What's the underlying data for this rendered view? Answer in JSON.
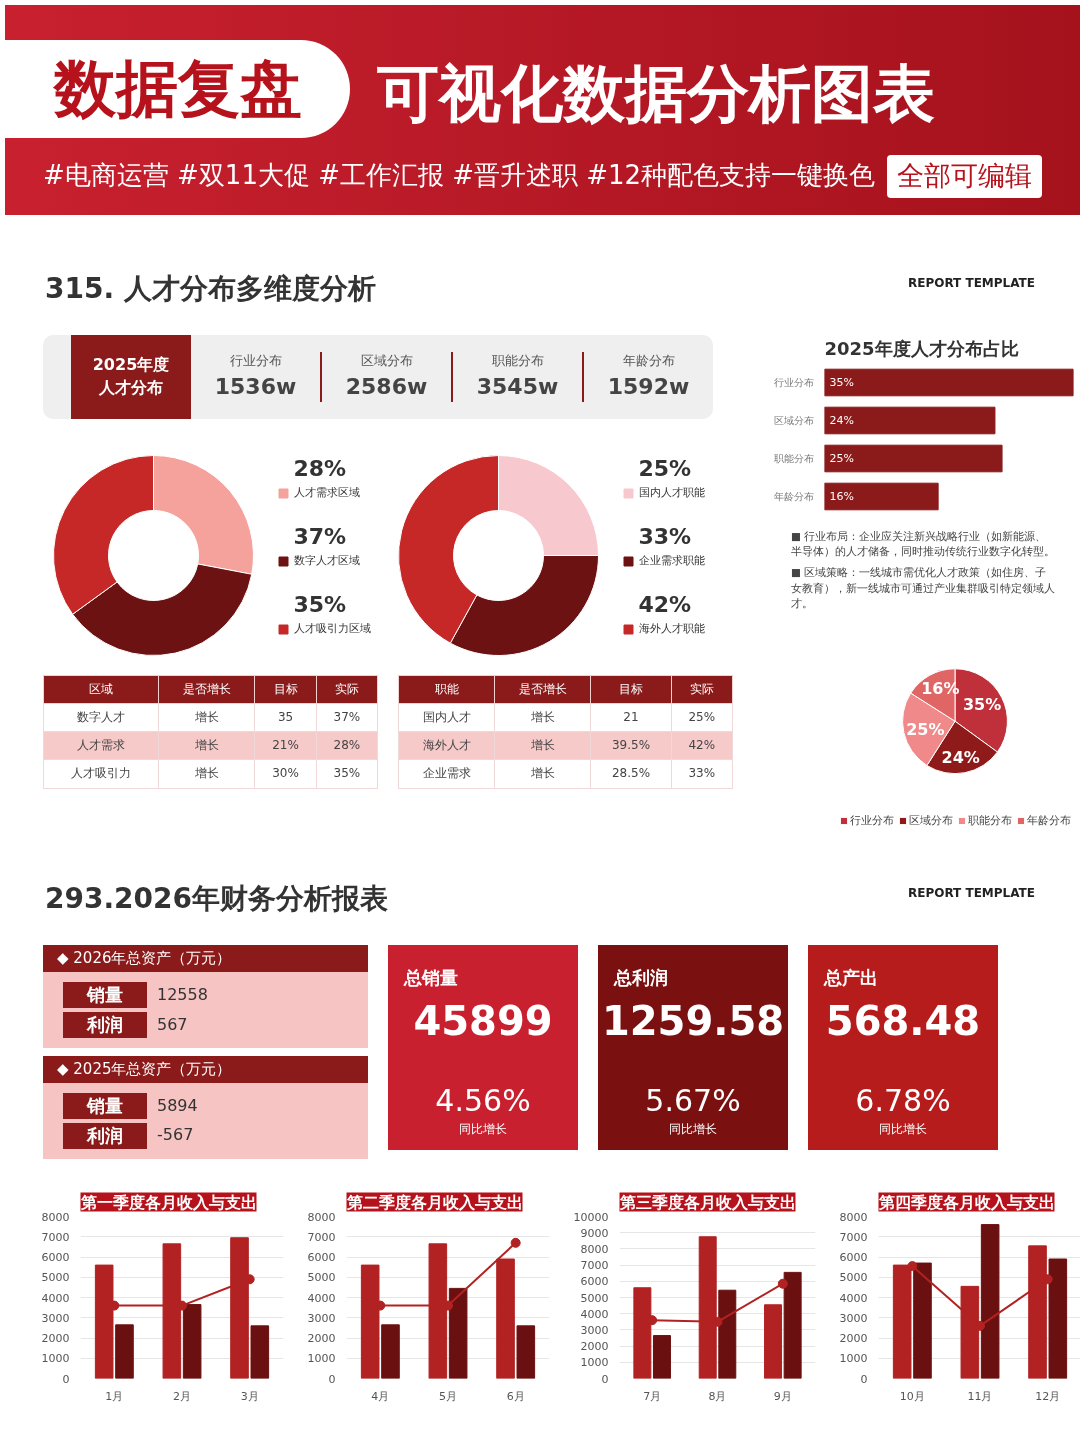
{
  "chart_data": [
    {
      "type": "other",
      "title": "数据复盘",
      "subtitle": "可视化数据分析图表",
      "annotations": [
        "#电商运营 #双11大促 #工作汇报 #晋升述职 #12种配色支持一键换色",
        "全部可编辑"
      ]
    },
    {
      "type": "other",
      "title": "315. 人才分布多维度分析",
      "annotations": [
        "REPORT TEMPLATE"
      ]
    },
    {
      "type": "other",
      "title": "2025年度人才分布",
      "categories": [
        "行业分布",
        "区域分布",
        "职能分布",
        "年龄分布"
      ],
      "value_labels": [
        "1536w",
        "2586w",
        "3545w",
        "1592w"
      ]
    },
    {
      "type": "donut",
      "categories": [
        "人才需求区域",
        "数字人才区域",
        "人才吸引力区域"
      ],
      "values": [
        28,
        37,
        35
      ],
      "colors": [
        "#f4a29b",
        "#6d1212",
        "#c62828"
      ],
      "value_labels": [
        "28%",
        "37%",
        "35%"
      ],
      "legend": "right"
    },
    {
      "type": "donut",
      "categories": [
        "国内人才职能",
        "企业需求职能",
        "海外人才职能"
      ],
      "values": [
        25,
        33,
        42
      ],
      "colors": [
        "#f8c8cf",
        "#6d1212",
        "#c62828"
      ],
      "value_labels": [
        "25%",
        "33%",
        "42%"
      ],
      "legend": "right"
    },
    {
      "type": "other",
      "categories": [
        "区域",
        "是否增长",
        "目标",
        "实际"
      ],
      "annotations": [
        "数字人才",
        "增长",
        "35",
        "37%",
        "人才需求",
        "增长",
        "21%",
        "28%",
        "人才吸引力",
        "增长",
        "30%",
        "35%"
      ]
    },
    {
      "type": "other",
      "categories": [
        "职能",
        "是否增长",
        "目标",
        "实际"
      ],
      "annotations": [
        "国内人才",
        "增长",
        "21",
        "25%",
        "海外人才",
        "增长",
        "39.5%",
        "42%",
        "企业需求",
        "增长",
        "28.5%",
        "33%"
      ]
    },
    {
      "type": "bar",
      "orientation": "horizontal",
      "title": "2025年度人才分布占比",
      "categories": [
        "行业分布",
        "区域分布",
        "职能分布",
        "年龄分布"
      ],
      "values": [
        35,
        24,
        25,
        16
      ],
      "color": "#8b1a1a",
      "value_labels": [
        "35%",
        "24%",
        "25%",
        "16%"
      ],
      "annotations": [
        "■ 行业布局：企业应关注新兴战略行业（如新能源、半导体）的人才储备，同时推动传统行业数字化转型。",
        "■ 区域策略：一线城市需优化人才政策（如住房、子女教育），新一线城市可通过产业集群吸引特定领域人才。"
      ]
    },
    {
      "type": "pie",
      "categories": [
        "行业分布",
        "区域分布",
        "职能分布",
        "年龄分布"
      ],
      "values": [
        35,
        24,
        25,
        16
      ],
      "colors": [
        "#c0303a",
        "#8e1a1a",
        "#f08a8a",
        "#e06666"
      ],
      "value_labels": [
        "35%",
        "24%",
        "25%",
        "16%"
      ],
      "legend": "bottom"
    },
    {
      "type": "other",
      "title": "293.2026年财务分析报表",
      "annotations": [
        "REPORT TEMPLATE"
      ]
    },
    {
      "type": "other",
      "annotations": [
        "◆ 2026年总资产（万元）",
        "销量",
        "12558",
        "利润",
        "567",
        "◆ 2025年总资产（万元）",
        "销量",
        "5894",
        "利润",
        "-567"
      ]
    },
    {
      "type": "other",
      "title": "总销量",
      "subtitle": "45899",
      "color": "#c8202f",
      "annotations": [
        "4.56%",
        "同比增长"
      ]
    },
    {
      "type": "other",
      "title": "总利润",
      "subtitle": "1259.58",
      "color": "#7a1010",
      "annotations": [
        "5.67%",
        "同比增长"
      ]
    },
    {
      "type": "other",
      "title": "总产出",
      "subtitle": "568.48",
      "color": "#b71c1c",
      "annotations": [
        "6.78%",
        "同比增长"
      ]
    },
    {
      "type": "bar",
      "title": "第一季度各月收入与支出",
      "categories": [
        "1月",
        "2月",
        "3月"
      ],
      "ylim": [
        0,
        8000
      ],
      "yticks": [
        0,
        1000,
        2000,
        3000,
        4000,
        5000,
        6000,
        7000,
        8000
      ],
      "grid": "y",
      "marker": "circle",
      "series": [
        {
          "color": "#b22222",
          "values": [
            5600,
            6650,
            6950
          ]
        },
        {
          "color": "#6b1010",
          "values": [
            2650,
            3650,
            2600
          ]
        },
        {
          "type": "line",
          "color": "#b22222",
          "values": [
            3600,
            3600,
            4900
          ]
        }
      ]
    },
    {
      "type": "bar",
      "title": "第二季度各月收入与支出",
      "categories": [
        "4月",
        "5月",
        "6月"
      ],
      "ylim": [
        0,
        8000
      ],
      "yticks": [
        0,
        1000,
        2000,
        3000,
        4000,
        5000,
        6000,
        7000,
        8000
      ],
      "grid": "y",
      "marker": "circle",
      "series": [
        {
          "color": "#b22222",
          "values": [
            5600,
            6650,
            5900
          ]
        },
        {
          "color": "#6b1010",
          "values": [
            2650,
            4450,
            2600
          ]
        },
        {
          "type": "line",
          "color": "#b22222",
          "values": [
            3600,
            3600,
            6700
          ]
        }
      ]
    },
    {
      "type": "bar",
      "title": "第三季度各月收入与支出",
      "categories": [
        "7月",
        "8月",
        "9月"
      ],
      "ylim": [
        0,
        10000
      ],
      "yticks": [
        0,
        1000,
        2000,
        3000,
        4000,
        5000,
        6000,
        7000,
        8000,
        9000,
        10000
      ],
      "grid": "y",
      "marker": "circle",
      "series": [
        {
          "color": "#b22222",
          "values": [
            5600,
            8750,
            4550
          ]
        },
        {
          "color": "#6b1010",
          "values": [
            2650,
            5450,
            6550
          ]
        },
        {
          "type": "line",
          "color": "#b22222",
          "values": [
            3600,
            3500,
            5850
          ]
        }
      ]
    },
    {
      "type": "bar",
      "title": "第四季度各月收入与支出",
      "categories": [
        "10月",
        "11月",
        "12月"
      ],
      "ylim": [
        0,
        8000
      ],
      "yticks": [
        0,
        1000,
        2000,
        3000,
        4000,
        5000,
        6000,
        7000,
        8000
      ],
      "grid": "y",
      "marker": "circle",
      "series": [
        {
          "color": "#b22222",
          "values": [
            5600,
            4550,
            6550
          ]
        },
        {
          "color": "#6b1010",
          "values": [
            5700,
            7600,
            5900
          ]
        },
        {
          "type": "line",
          "color": "#b22222",
          "values": [
            5550,
            2600,
            4900
          ]
        }
      ]
    }
  ]
}
